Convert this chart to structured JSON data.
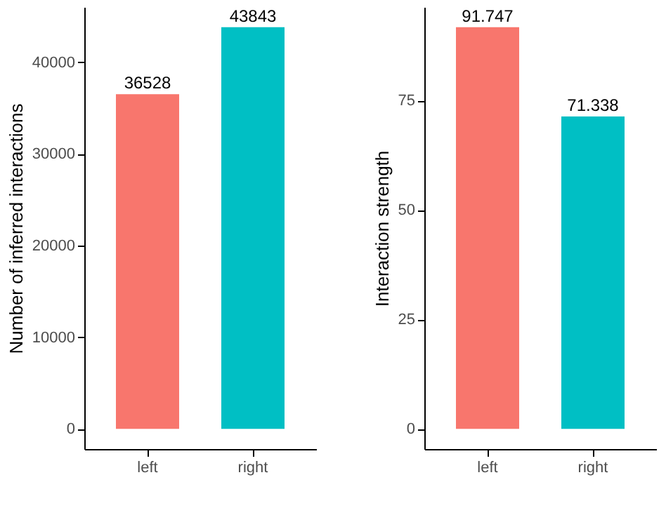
{
  "chart_data": [
    {
      "type": "bar",
      "ylabel": "Number of inferred interactions",
      "categories": [
        "left",
        "right"
      ],
      "values": [
        36528,
        43843
      ],
      "colors": [
        "#f8766d",
        "#00bfc4"
      ],
      "ylim": [
        -2192,
        46035
      ],
      "yticks": [
        0,
        10000,
        20000,
        30000,
        40000
      ],
      "data_labels": true,
      "grid": false
    },
    {
      "type": "bar",
      "ylabel": "Interaction strength",
      "categories": [
        "left",
        "right"
      ],
      "values": [
        91.747,
        71.338
      ],
      "colors": [
        "#f8766d",
        "#00bfc4"
      ],
      "ylim": [
        -4.587,
        96.334
      ],
      "yticks": [
        0,
        25,
        50,
        75
      ],
      "data_labels": true,
      "grid": false
    }
  ]
}
